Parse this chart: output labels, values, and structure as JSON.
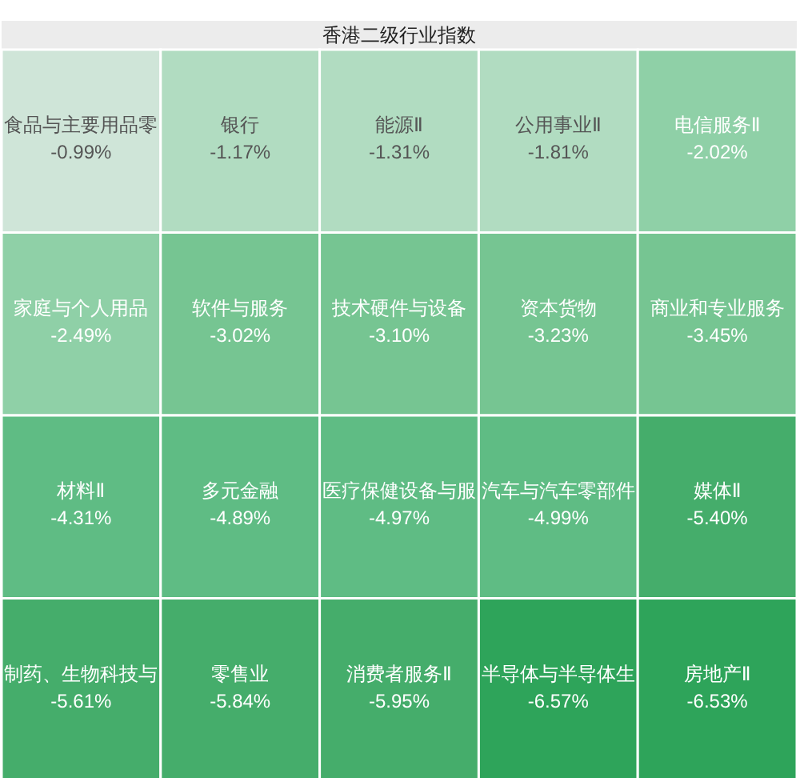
{
  "chart_data": {
    "type": "other",
    "title": "香港二级行业指数",
    "categories": [
      "食品与主要用品零",
      "银行",
      "能源Ⅱ",
      "公用事业Ⅱ",
      "电信服务Ⅱ",
      "家庭与个人用品",
      "软件与服务",
      "技术硬件与设备",
      "资本货物",
      "商业和专业服务",
      "材料Ⅱ",
      "多元金融",
      "医疗保健设备与服",
      "汽车与汽车零部件",
      "媒体Ⅱ",
      "制药、生物科技与",
      "零售业",
      "消费者服务Ⅱ",
      "半导体与半导体生",
      "房地产Ⅱ"
    ],
    "values": [
      -0.99,
      -1.17,
      -1.31,
      -1.81,
      -2.02,
      -2.49,
      -3.02,
      -3.1,
      -3.23,
      -3.45,
      -4.31,
      -4.89,
      -4.97,
      -4.99,
      -5.4,
      -5.61,
      -5.84,
      -5.95,
      -6.57,
      -6.53
    ],
    "value_labels": [
      "-0.99%",
      "-1.17%",
      "-1.31%",
      "-1.81%",
      "-2.02%",
      "-2.49%",
      "-3.02%",
      "-3.10%",
      "-3.23%",
      "-3.45%",
      "-4.31%",
      "-4.89%",
      "-4.97%",
      "-4.99%",
      "-5.40%",
      "-5.61%",
      "-5.84%",
      "-5.95%",
      "-6.57%",
      "-6.53%"
    ],
    "colors": [
      "#cfe5d8",
      "#b1dcc1",
      "#b1dcc1",
      "#b1dcc1",
      "#8fd0a7",
      "#8fd0a7",
      "#76c592",
      "#76c592",
      "#76c592",
      "#76c592",
      "#5fbc84",
      "#5fbc84",
      "#5fbc84",
      "#5fbc84",
      "#45ad6b",
      "#45ad6b",
      "#45ad6b",
      "#45ad6b",
      "#2ea45a",
      "#2ea45a"
    ]
  }
}
